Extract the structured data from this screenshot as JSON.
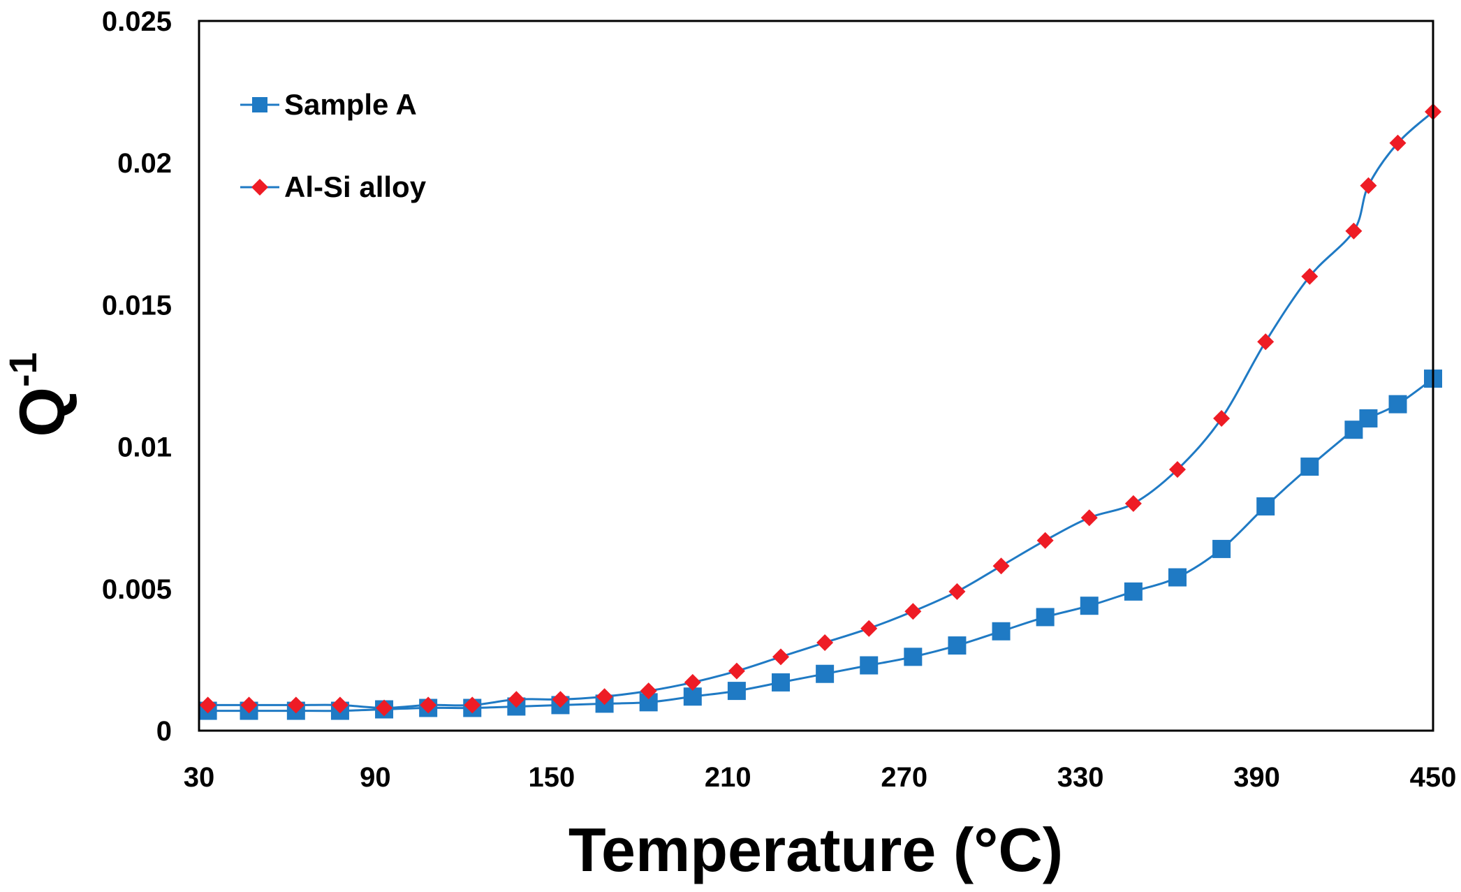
{
  "chart_data": {
    "type": "line",
    "title": "",
    "xlabel": "Temperature (°C)",
    "ylabel_base": "Q",
    "ylabel_sup": "-1",
    "xlim": [
      30,
      450
    ],
    "ylim": [
      0,
      0.025
    ],
    "xticks": [
      30,
      90,
      150,
      210,
      270,
      330,
      390,
      450
    ],
    "xtick_labels": [
      "30",
      "90",
      "150",
      "210",
      "270",
      "330",
      "390",
      "450"
    ],
    "yticks": [
      0,
      0.005,
      0.01,
      0.015,
      0.02,
      0.025
    ],
    "ytick_labels": [
      "0",
      "0.005",
      "0.01",
      "0.015",
      "0.02",
      "0.025"
    ],
    "grid": false,
    "legend_position": "top-left",
    "series": [
      {
        "name": "Sample A",
        "marker": "square",
        "line_color": "#1f7ac4",
        "marker_color": "#1f7ac4",
        "x": [
          33,
          47,
          63,
          78,
          93,
          108,
          123,
          138,
          153,
          168,
          183,
          198,
          213,
          228,
          243,
          258,
          273,
          288,
          303,
          318,
          333,
          348,
          363,
          378,
          393,
          408,
          423,
          428,
          438,
          450
        ],
        "values": [
          0.0007,
          0.0007,
          0.0007,
          0.0007,
          0.00075,
          0.0008,
          0.0008,
          0.00085,
          0.0009,
          0.00095,
          0.001,
          0.0012,
          0.0014,
          0.0017,
          0.002,
          0.0023,
          0.0026,
          0.003,
          0.0035,
          0.004,
          0.0044,
          0.0049,
          0.0054,
          0.0064,
          0.0079,
          0.0093,
          0.0106,
          0.011,
          0.0115,
          0.0124
        ]
      },
      {
        "name": "Al-Si alloy",
        "marker": "diamond",
        "line_color": "#1f7ac4",
        "marker_color": "#ee1c25",
        "x": [
          33,
          47,
          63,
          78,
          93,
          108,
          123,
          138,
          153,
          168,
          183,
          198,
          213,
          228,
          243,
          258,
          273,
          288,
          303,
          318,
          333,
          348,
          363,
          378,
          393,
          408,
          423,
          428,
          438,
          450
        ],
        "values": [
          0.0009,
          0.0009,
          0.0009,
          0.0009,
          0.0008,
          0.0009,
          0.0009,
          0.0011,
          0.0011,
          0.0012,
          0.0014,
          0.0017,
          0.0021,
          0.0026,
          0.0031,
          0.0036,
          0.0042,
          0.0049,
          0.0058,
          0.0067,
          0.0075,
          0.008,
          0.0092,
          0.011,
          0.0137,
          0.016,
          0.0176,
          0.0192,
          0.0207,
          0.0218
        ]
      }
    ]
  }
}
